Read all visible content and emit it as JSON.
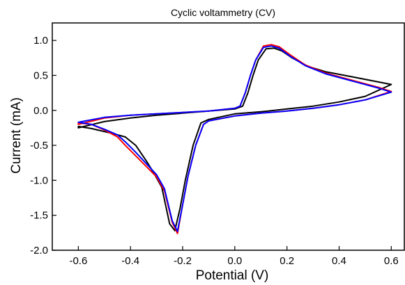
{
  "chart_data": {
    "type": "line",
    "title": "Cyclic voltammetry (CV)",
    "xlabel": "Potential (V)",
    "ylabel": "Current (mA)",
    "xlim": [
      -0.7,
      0.65
    ],
    "ylim": [
      -2.0,
      1.25
    ],
    "x_ticks": [
      -0.6,
      -0.4,
      -0.2,
      0.0,
      0.2,
      0.4,
      0.6
    ],
    "x_tick_labels": [
      "-0.6",
      "-0.4",
      "-0.2",
      "0.0",
      "0.2",
      "0.4",
      "0.6"
    ],
    "y_ticks": [
      -2.0,
      -1.5,
      -1.0,
      -0.5,
      0.0,
      0.5,
      1.0
    ],
    "y_tick_labels": [
      "-2.0",
      "-1.5",
      "-1.0",
      "-0.5",
      "0.0",
      "0.5",
      "1.0"
    ],
    "grid": false,
    "legend": "none",
    "series": [
      {
        "color": "#000000",
        "points": [
          [
            -0.6,
            -0.25
          ],
          [
            -0.5,
            -0.16
          ],
          [
            -0.4,
            -0.11
          ],
          [
            -0.3,
            -0.07
          ],
          [
            -0.2,
            -0.04
          ],
          [
            -0.1,
            -0.01
          ],
          [
            0.0,
            0.02
          ],
          [
            0.03,
            0.06
          ],
          [
            0.05,
            0.25
          ],
          [
            0.07,
            0.5
          ],
          [
            0.09,
            0.72
          ],
          [
            0.12,
            0.88
          ],
          [
            0.15,
            0.89
          ],
          [
            0.18,
            0.85
          ],
          [
            0.22,
            0.75
          ],
          [
            0.28,
            0.63
          ],
          [
            0.35,
            0.55
          ],
          [
            0.45,
            0.48
          ],
          [
            0.6,
            0.37
          ],
          [
            0.5,
            0.2
          ],
          [
            0.4,
            0.12
          ],
          [
            0.3,
            0.06
          ],
          [
            0.2,
            0.02
          ],
          [
            0.1,
            -0.02
          ],
          [
            0.0,
            -0.05
          ],
          [
            -0.1,
            -0.13
          ],
          [
            -0.13,
            -0.18
          ],
          [
            -0.16,
            -0.5
          ],
          [
            -0.19,
            -1.0
          ],
          [
            -0.21,
            -1.4
          ],
          [
            -0.23,
            -1.72
          ],
          [
            -0.25,
            -1.62
          ],
          [
            -0.28,
            -1.1
          ],
          [
            -0.31,
            -0.9
          ],
          [
            -0.34,
            -0.72
          ],
          [
            -0.38,
            -0.5
          ],
          [
            -0.42,
            -0.38
          ],
          [
            -0.48,
            -0.32
          ],
          [
            -0.55,
            -0.26
          ],
          [
            -0.6,
            -0.23
          ]
        ]
      },
      {
        "color": "#ff0000",
        "points": [
          [
            -0.6,
            -0.2
          ],
          [
            -0.5,
            -0.11
          ],
          [
            -0.4,
            -0.07
          ],
          [
            -0.3,
            -0.05
          ],
          [
            -0.2,
            -0.03
          ],
          [
            -0.1,
            -0.01
          ],
          [
            0.0,
            0.03
          ],
          [
            0.02,
            0.06
          ],
          [
            0.04,
            0.25
          ],
          [
            0.06,
            0.5
          ],
          [
            0.08,
            0.72
          ],
          [
            0.11,
            0.92
          ],
          [
            0.14,
            0.94
          ],
          [
            0.17,
            0.91
          ],
          [
            0.21,
            0.8
          ],
          [
            0.27,
            0.65
          ],
          [
            0.35,
            0.53
          ],
          [
            0.45,
            0.43
          ],
          [
            0.55,
            0.33
          ],
          [
            0.6,
            0.27
          ],
          [
            0.5,
            0.15
          ],
          [
            0.4,
            0.08
          ],
          [
            0.3,
            0.03
          ],
          [
            0.2,
            -0.01
          ],
          [
            0.1,
            -0.04
          ],
          [
            0.0,
            -0.08
          ],
          [
            -0.1,
            -0.15
          ],
          [
            -0.12,
            -0.2
          ],
          [
            -0.15,
            -0.5
          ],
          [
            -0.18,
            -0.95
          ],
          [
            -0.2,
            -1.35
          ],
          [
            -0.22,
            -1.76
          ],
          [
            -0.24,
            -1.6
          ],
          [
            -0.27,
            -1.15
          ],
          [
            -0.3,
            -0.95
          ],
          [
            -0.34,
            -0.8
          ],
          [
            -0.38,
            -0.65
          ],
          [
            -0.42,
            -0.5
          ],
          [
            -0.45,
            -0.38
          ],
          [
            -0.5,
            -0.28
          ],
          [
            -0.55,
            -0.2
          ],
          [
            -0.6,
            -0.18
          ]
        ]
      },
      {
        "color": "#0000ff",
        "points": [
          [
            -0.6,
            -0.17
          ],
          [
            -0.5,
            -0.1
          ],
          [
            -0.4,
            -0.07
          ],
          [
            -0.3,
            -0.05
          ],
          [
            -0.2,
            -0.03
          ],
          [
            -0.1,
            -0.01
          ],
          [
            0.0,
            0.03
          ],
          [
            0.02,
            0.06
          ],
          [
            0.04,
            0.25
          ],
          [
            0.06,
            0.5
          ],
          [
            0.08,
            0.72
          ],
          [
            0.11,
            0.9
          ],
          [
            0.14,
            0.92
          ],
          [
            0.17,
            0.89
          ],
          [
            0.21,
            0.78
          ],
          [
            0.27,
            0.64
          ],
          [
            0.35,
            0.52
          ],
          [
            0.45,
            0.42
          ],
          [
            0.55,
            0.32
          ],
          [
            0.6,
            0.26
          ],
          [
            0.5,
            0.15
          ],
          [
            0.4,
            0.08
          ],
          [
            0.3,
            0.03
          ],
          [
            0.2,
            -0.01
          ],
          [
            0.1,
            -0.04
          ],
          [
            0.0,
            -0.08
          ],
          [
            -0.1,
            -0.15
          ],
          [
            -0.12,
            -0.2
          ],
          [
            -0.15,
            -0.5
          ],
          [
            -0.18,
            -0.95
          ],
          [
            -0.2,
            -1.35
          ],
          [
            -0.22,
            -1.73
          ],
          [
            -0.24,
            -1.58
          ],
          [
            -0.27,
            -1.12
          ],
          [
            -0.3,
            -0.92
          ],
          [
            -0.34,
            -0.76
          ],
          [
            -0.38,
            -0.6
          ],
          [
            -0.42,
            -0.45
          ],
          [
            -0.45,
            -0.35
          ],
          [
            -0.5,
            -0.27
          ],
          [
            -0.55,
            -0.2
          ],
          [
            -0.6,
            -0.17
          ]
        ]
      }
    ]
  }
}
